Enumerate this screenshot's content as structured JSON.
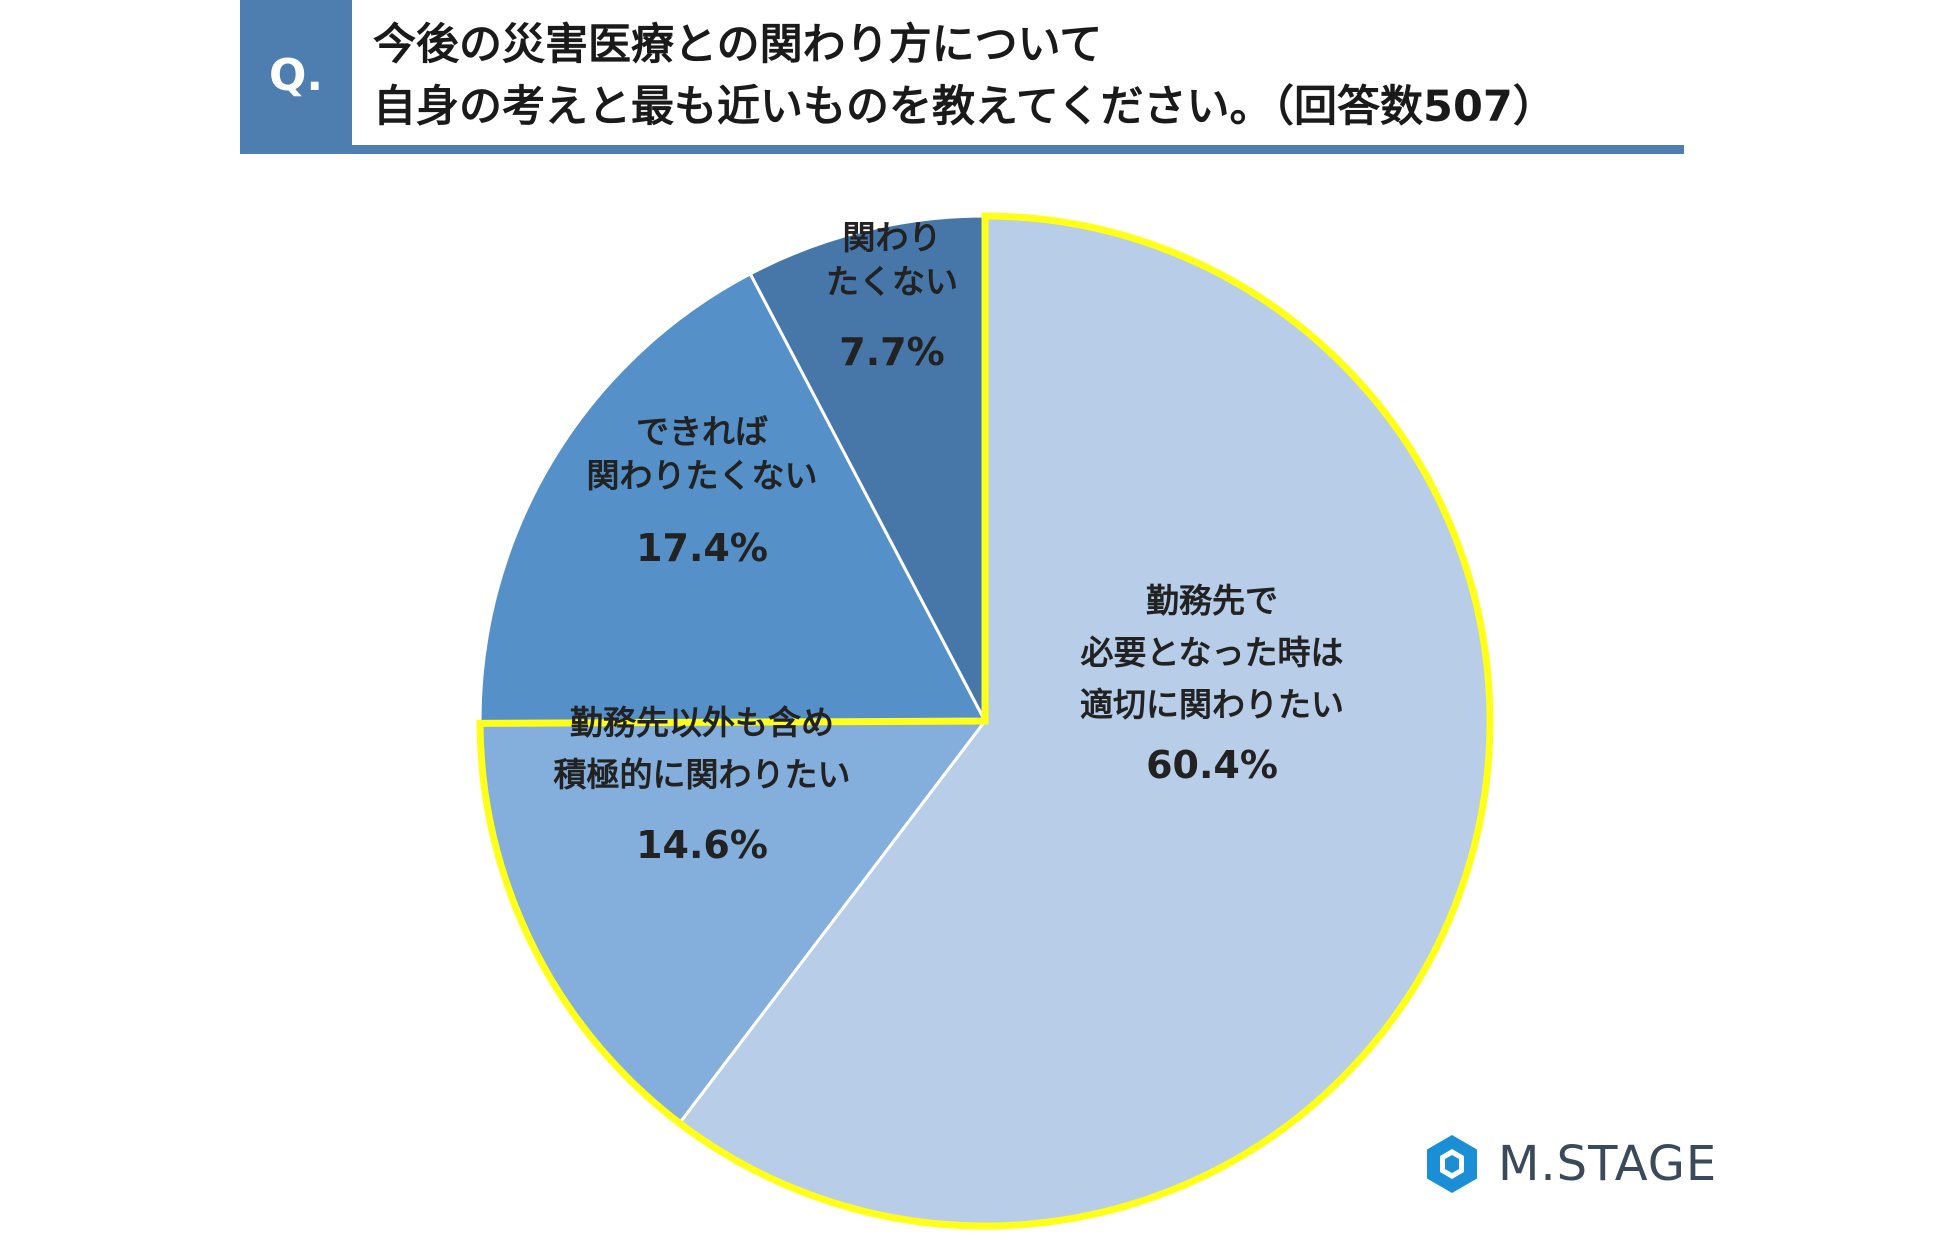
{
  "header": {
    "q_label": "Q.",
    "title_line1": "今後の災害医療との関わり方について",
    "title_line2": "自身の考えと最も近いものを教えてください。（回答数507）"
  },
  "colors": {
    "header_accent": "#4e7eb0",
    "highlight_outline": "#ffff1a",
    "slice_divider": "#ffffff"
  },
  "chart_data": {
    "type": "pie",
    "start": "12 o'clock",
    "direction": "clockwise",
    "slices": [
      {
        "label_lines": [
          "勤務先で",
          "必要となった時は",
          "適切に関わりたい"
        ],
        "value": 60.4,
        "value_label": "60.4%",
        "color": "#b7cde8",
        "highlighted": true
      },
      {
        "label_lines": [
          "勤務先以外も含め",
          "積極的に関わりたい"
        ],
        "value": 14.6,
        "value_label": "14.6%",
        "color": "#84aedc",
        "highlighted": true
      },
      {
        "label_lines": [
          "できれば",
          "関わりたくない"
        ],
        "value": 17.4,
        "value_label": "17.4%",
        "color": "#5590c8",
        "highlighted": false
      },
      {
        "label_lines": [
          "関わり",
          "たくない"
        ],
        "value": 7.7,
        "value_label": "7.7%",
        "color": "#4677a8",
        "highlighted": false
      }
    ]
  },
  "logo": {
    "text": "M.STAGE",
    "icon": "hexagon-logo-icon",
    "color": "#1a8fd6"
  }
}
